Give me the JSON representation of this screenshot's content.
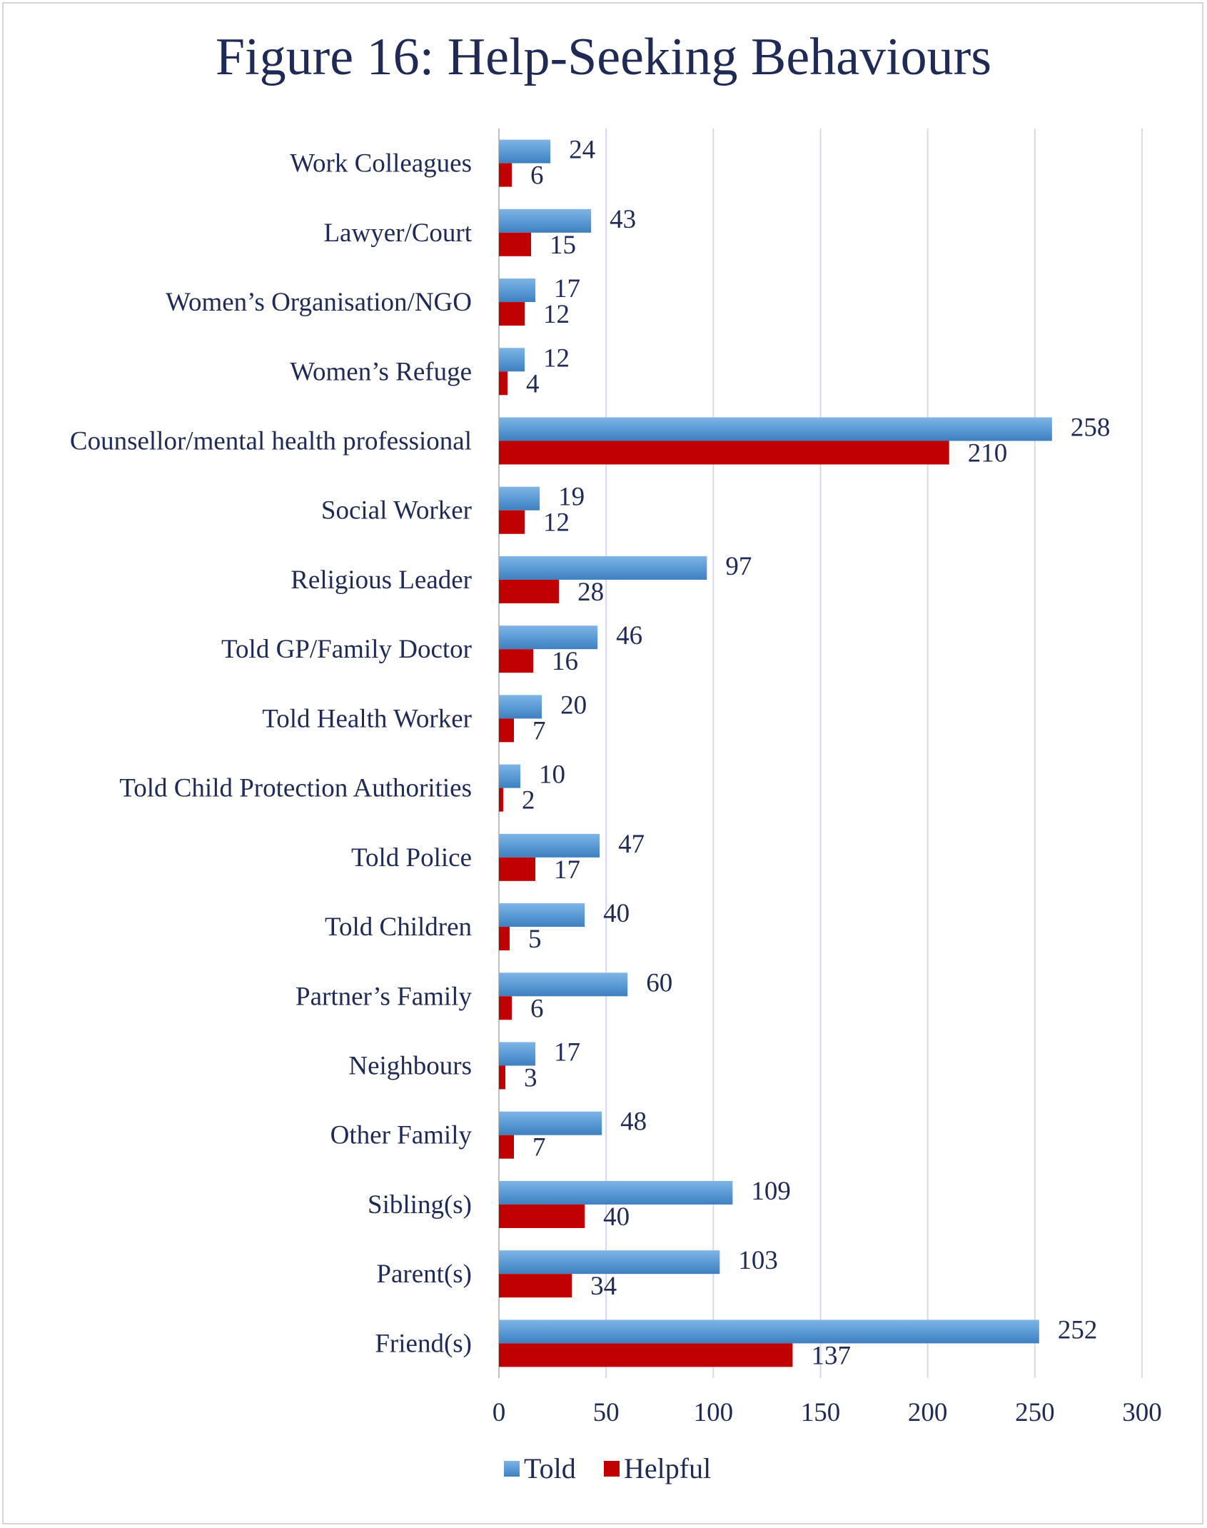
{
  "chart_data": {
    "type": "bar",
    "orientation": "horizontal",
    "title": "Figure 16: Help-Seeking Behaviours",
    "categories": [
      "Work Colleagues",
      "Lawyer/Court",
      "Women’s Organisation/NGO",
      "Women’s Refuge",
      "Counsellor/mental health professional",
      "Social Worker",
      "Religious Leader",
      "Told GP/Family Doctor",
      "Told Health Worker",
      "Told Child Protection Authorities",
      "Told Police",
      "Told Children",
      "Partner’s Family",
      "Neighbours",
      "Other Family",
      "Sibling(s)",
      "Parent(s)",
      "Friend(s)"
    ],
    "series": [
      {
        "name": "Told",
        "color": "#5b9bd5",
        "values": [
          24,
          43,
          17,
          12,
          258,
          19,
          97,
          46,
          20,
          10,
          47,
          40,
          60,
          17,
          48,
          109,
          103,
          252
        ]
      },
      {
        "name": "Helpful",
        "color": "#c00000",
        "values": [
          6,
          15,
          12,
          4,
          210,
          12,
          28,
          16,
          7,
          2,
          17,
          5,
          6,
          3,
          7,
          40,
          34,
          137
        ]
      }
    ],
    "xlim": [
      0,
      300
    ],
    "xticks": [
      0,
      50,
      100,
      150,
      200,
      250,
      300
    ],
    "grid": true,
    "legend_position": "bottom",
    "xlabel": "",
    "ylabel": ""
  }
}
